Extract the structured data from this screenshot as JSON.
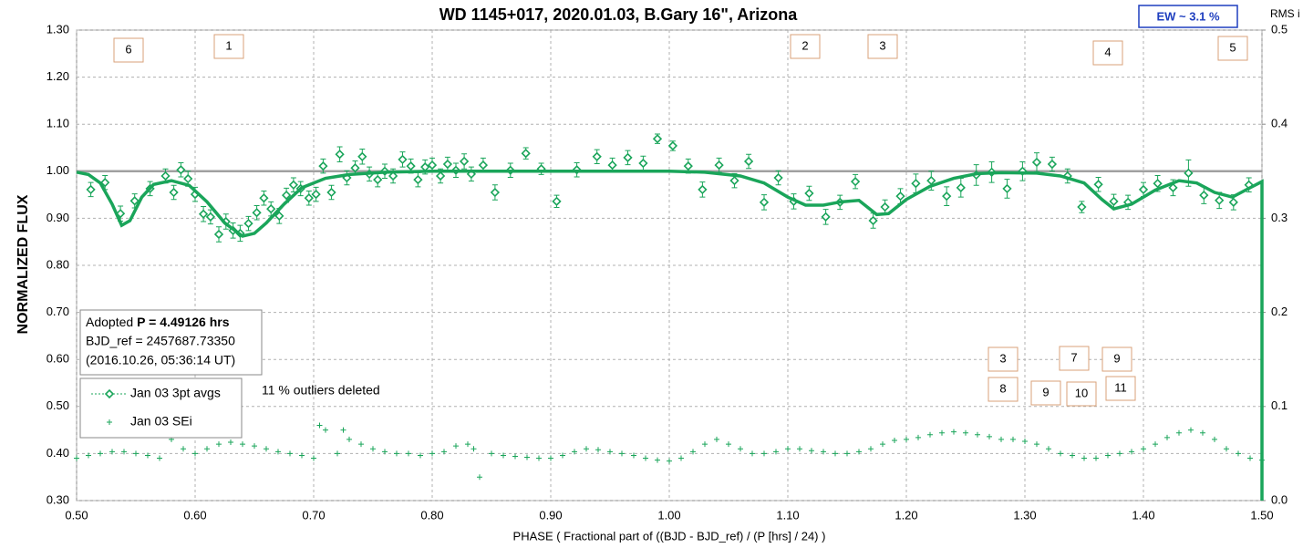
{
  "chart_data": {
    "type": "scatter",
    "title": "WD 1145+017, 2020.01.03, B.Gary 16\", Arizona",
    "xlabel": "PHASE ( Fractional part of ((BJD - BJD_ref) / (P [hrs] / 24) )",
    "ylabel": "NORMALIZED FLUX",
    "y2label": "RMS i",
    "ew_label": "EW ~ 3.1 %",
    "note": "11 % outliers deleted",
    "info_box": {
      "prefix": "Adopted",
      "bold": "P = 4.49126 hrs",
      "lines": [
        "BJD_ref = 2457687.73350",
        "(2016.10.26, 05:36:14 UT)"
      ]
    },
    "boxed_labels": [
      "6",
      "1",
      "2",
      "3",
      "4",
      "5",
      "3",
      "7",
      "9",
      "8",
      "9",
      "10",
      "11"
    ],
    "xlim": [
      0.5,
      1.5
    ],
    "xticks": [
      {
        "value": 0.5,
        "label": "0.50"
      },
      {
        "value": 0.6,
        "label": "0.60"
      },
      {
        "value": 0.7,
        "label": "0.70"
      },
      {
        "value": 0.8,
        "label": "0.80"
      },
      {
        "value": 0.9,
        "label": "0.90"
      },
      {
        "value": 1.0,
        "label": "1.00"
      },
      {
        "value": 1.1,
        "label": "1.10"
      },
      {
        "value": 1.2,
        "label": "1.20"
      },
      {
        "value": 1.3,
        "label": "1.30"
      },
      {
        "value": 1.4,
        "label": "1.40"
      },
      {
        "value": 1.5,
        "label": "1.50"
      }
    ],
    "ylim": [
      0.3,
      1.3
    ],
    "yticks": [
      {
        "value": 0.3,
        "label": "0.30"
      },
      {
        "value": 0.4,
        "label": "0.40"
      },
      {
        "value": 0.5,
        "label": "0.50"
      },
      {
        "value": 0.6,
        "label": "0.60"
      },
      {
        "value": 0.7,
        "label": "0.70"
      },
      {
        "value": 0.8,
        "label": "0.80"
      },
      {
        "value": 0.9,
        "label": "0.90"
      },
      {
        "value": 1.0,
        "label": "1.00"
      },
      {
        "value": 1.1,
        "label": "1.10"
      },
      {
        "value": 1.2,
        "label": "1.20"
      },
      {
        "value": 1.3,
        "label": "1.30"
      }
    ],
    "y2lim": [
      0,
      0.5
    ],
    "y2ticks": [
      {
        "value": 0,
        "label": "0.0"
      },
      0.1,
      0.2,
      0.3,
      0.4,
      0.5
    ],
    "hline": 1.0,
    "grid": true,
    "series": [
      {
        "name": "Jan 03 3pt avgs",
        "marker": "diamond",
        "color": "#1aa55a",
        "x": [
          0.512,
          0.524,
          0.537,
          0.549,
          0.562,
          0.575,
          0.582,
          0.588,
          0.594,
          0.6,
          0.607,
          0.613,
          0.62,
          0.626,
          0.632,
          0.638,
          0.645,
          0.652,
          0.658,
          0.664,
          0.671,
          0.677,
          0.683,
          0.689,
          0.696,
          0.702,
          0.708,
          0.715,
          0.722,
          0.728,
          0.735,
          0.741,
          0.747,
          0.754,
          0.76,
          0.767,
          0.775,
          0.782,
          0.788,
          0.794,
          0.8,
          0.807,
          0.813,
          0.82,
          0.827,
          0.833,
          0.843,
          0.853,
          0.866,
          0.879,
          0.892,
          0.905,
          0.922,
          0.939,
          0.952,
          0.965,
          0.978,
          0.99,
          1.003,
          1.016,
          1.028,
          1.042,
          1.055,
          1.067,
          1.08,
          1.092,
          1.105,
          1.118,
          1.132,
          1.144,
          1.157,
          1.172,
          1.182,
          1.195,
          1.208,
          1.221,
          1.234,
          1.246,
          1.259,
          1.272,
          1.285,
          1.298,
          1.31,
          1.323,
          1.336,
          1.348,
          1.362,
          1.375,
          1.387,
          1.4,
          1.412,
          1.425,
          1.438,
          1.451,
          1.464,
          1.476,
          1.489
        ],
        "values": [
          0.961,
          0.976,
          0.91,
          0.937,
          0.963,
          0.99,
          0.955,
          1.003,
          0.984,
          0.951,
          0.909,
          0.903,
          0.866,
          0.893,
          0.874,
          0.868,
          0.889,
          0.912,
          0.943,
          0.92,
          0.905,
          0.949,
          0.971,
          0.963,
          0.943,
          0.951,
          1.011,
          0.955,
          1.036,
          0.986,
          1.007,
          1.031,
          0.994,
          0.982,
          1.0,
          0.99,
          1.025,
          1.011,
          0.982,
          1.009,
          1.013,
          0.99,
          1.015,
          1.002,
          1.021,
          0.994,
          1.013,
          0.955,
          1.002,
          1.038,
          1.005,
          0.936,
          1.003,
          1.031,
          1.013,
          1.029,
          1.017,
          1.069,
          1.054,
          1.011,
          0.961,
          1.013,
          0.98,
          1.021,
          0.934,
          0.986,
          0.936,
          0.953,
          0.903,
          0.934,
          0.978,
          0.895,
          0.924,
          0.947,
          0.974,
          0.98,
          0.947,
          0.965,
          0.992,
          0.998,
          0.963,
          1.0,
          1.019,
          1.015,
          0.99,
          0.924,
          0.972,
          0.936,
          0.934,
          0.961,
          0.974,
          0.965,
          0.996,
          0.949,
          0.938,
          0.934,
          0.971
        ],
        "errors": [
          0.015,
          0.015,
          0.016,
          0.015,
          0.015,
          0.015,
          0.015,
          0.015,
          0.016,
          0.015,
          0.016,
          0.015,
          0.016,
          0.016,
          0.016,
          0.017,
          0.015,
          0.015,
          0.015,
          0.015,
          0.016,
          0.015,
          0.015,
          0.015,
          0.015,
          0.015,
          0.015,
          0.015,
          0.016,
          0.015,
          0.015,
          0.016,
          0.015,
          0.015,
          0.015,
          0.015,
          0.016,
          0.015,
          0.015,
          0.015,
          0.015,
          0.015,
          0.015,
          0.015,
          0.016,
          0.015,
          0.015,
          0.016,
          0.015,
          0.012,
          0.012,
          0.013,
          0.015,
          0.015,
          0.015,
          0.015,
          0.015,
          0.01,
          0.01,
          0.015,
          0.016,
          0.015,
          0.015,
          0.015,
          0.016,
          0.015,
          0.016,
          0.015,
          0.016,
          0.015,
          0.015,
          0.016,
          0.015,
          0.016,
          0.02,
          0.02,
          0.02,
          0.02,
          0.022,
          0.022,
          0.02,
          0.02,
          0.02,
          0.015,
          0.015,
          0.012,
          0.015,
          0.015,
          0.015,
          0.015,
          0.017,
          0.017,
          0.028,
          0.018,
          0.017,
          0.016,
          0.015
        ]
      },
      {
        "name": "Jan 03 SEi",
        "marker": "cross",
        "color": "#1aa55a",
        "axis": "y2",
        "x": [
          0.5,
          0.51,
          0.52,
          0.53,
          0.54,
          0.55,
          0.56,
          0.57,
          0.575,
          0.58,
          0.59,
          0.6,
          0.61,
          0.62,
          0.63,
          0.64,
          0.65,
          0.66,
          0.67,
          0.68,
          0.69,
          0.7,
          0.705,
          0.71,
          0.72,
          0.725,
          0.73,
          0.74,
          0.75,
          0.76,
          0.77,
          0.78,
          0.79,
          0.8,
          0.81,
          0.82,
          0.83,
          0.835,
          0.84,
          0.85,
          0.86,
          0.87,
          0.88,
          0.89,
          0.9,
          0.91,
          0.92,
          0.93,
          0.94,
          0.95,
          0.96,
          0.97,
          0.98,
          0.99,
          1.0,
          1.01,
          1.02,
          1.03,
          1.04,
          1.05,
          1.06,
          1.07,
          1.08,
          1.09,
          1.1,
          1.11,
          1.12,
          1.13,
          1.14,
          1.15,
          1.16,
          1.17,
          1.18,
          1.19,
          1.2,
          1.21,
          1.22,
          1.23,
          1.24,
          1.25,
          1.26,
          1.27,
          1.28,
          1.29,
          1.3,
          1.31,
          1.32,
          1.33,
          1.34,
          1.35,
          1.36,
          1.37,
          1.38,
          1.39,
          1.4,
          1.41,
          1.42,
          1.43,
          1.44,
          1.45,
          1.46,
          1.47,
          1.48,
          1.49,
          1.5
        ],
        "values": [
          0.045,
          0.048,
          0.05,
          0.052,
          0.052,
          0.05,
          0.048,
          0.045,
          0.07,
          0.065,
          0.055,
          0.05,
          0.055,
          0.06,
          0.062,
          0.06,
          0.058,
          0.055,
          0.052,
          0.05,
          0.048,
          0.045,
          0.08,
          0.075,
          0.05,
          0.075,
          0.065,
          0.06,
          0.055,
          0.052,
          0.05,
          0.05,
          0.048,
          0.05,
          0.052,
          0.058,
          0.06,
          0.055,
          0.025,
          0.05,
          0.048,
          0.047,
          0.046,
          0.045,
          0.045,
          0.048,
          0.052,
          0.055,
          0.054,
          0.052,
          0.05,
          0.048,
          0.045,
          0.043,
          0.042,
          0.045,
          0.052,
          0.06,
          0.065,
          0.06,
          0.055,
          0.05,
          0.05,
          0.052,
          0.055,
          0.055,
          0.053,
          0.052,
          0.05,
          0.05,
          0.052,
          0.055,
          0.06,
          0.064,
          0.065,
          0.067,
          0.07,
          0.072,
          0.073,
          0.072,
          0.07,
          0.068,
          0.065,
          0.065,
          0.063,
          0.06,
          0.055,
          0.05,
          0.048,
          0.045,
          0.045,
          0.048,
          0.05,
          0.052,
          0.055,
          0.06,
          0.067,
          0.072,
          0.075,
          0.072,
          0.065,
          0.055,
          0.05,
          0.045,
          0.043
        ]
      },
      {
        "marker": "line",
        "color": "#1aa55a",
        "x": [
          0.5,
          0.51,
          0.52,
          0.53,
          0.538,
          0.545,
          0.555,
          0.565,
          0.58,
          0.595,
          0.61,
          0.625,
          0.64,
          0.65,
          0.66,
          0.675,
          0.69,
          0.71,
          0.73,
          0.76,
          0.8,
          0.9,
          1.0,
          1.03,
          1.06,
          1.08,
          1.1,
          1.115,
          1.13,
          1.145,
          1.16,
          1.175,
          1.185,
          1.2,
          1.22,
          1.24,
          1.26,
          1.28,
          1.31,
          1.33,
          1.35,
          1.365,
          1.375,
          1.39,
          1.41,
          1.43,
          1.445,
          1.46,
          1.475,
          1.49,
          1.5,
          1.5
        ],
        "values": [
          0.998,
          0.993,
          0.975,
          0.93,
          0.885,
          0.895,
          0.945,
          0.972,
          0.98,
          0.97,
          0.935,
          0.89,
          0.862,
          0.868,
          0.89,
          0.93,
          0.965,
          0.985,
          0.993,
          0.998,
          1.0,
          1.0,
          1.0,
          0.998,
          0.99,
          0.975,
          0.945,
          0.928,
          0.928,
          0.935,
          0.938,
          0.908,
          0.91,
          0.94,
          0.968,
          0.985,
          0.995,
          0.997,
          0.996,
          0.99,
          0.975,
          0.94,
          0.92,
          0.93,
          0.96,
          0.98,
          0.975,
          0.955,
          0.945,
          0.965,
          0.978,
          0.3
        ]
      }
    ]
  }
}
